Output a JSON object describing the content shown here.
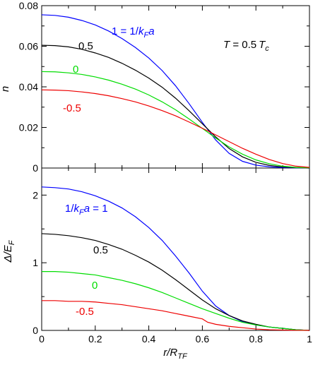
{
  "chart_data": [
    {
      "type": "line",
      "panel": "top",
      "ylabel": "n",
      "xlim": [
        0,
        1
      ],
      "ylim": [
        0,
        0.08
      ],
      "x_ticks": [
        "0",
        "0.2",
        "0.4",
        "0.6",
        "0.8",
        "1"
      ],
      "y_ticks": [
        0,
        0.02,
        0.04,
        0.06,
        0.08
      ],
      "y_tick_labels": [
        "0",
        "0.02",
        "0.04",
        "0.06",
        "0.08"
      ],
      "annotation": {
        "left": "T",
        "eq": " = 0.5",
        "t": "T",
        "sub": "c"
      },
      "series": [
        {
          "name": "1",
          "label_prefix": "1 = 1/",
          "label_k": "k",
          "label_sub": "F",
          "label_a": "a",
          "color": "#0000ff",
          "points": [
            [
              0,
              0.0755
            ],
            [
              0.05,
              0.0752
            ],
            [
              0.1,
              0.0743
            ],
            [
              0.15,
              0.0727
            ],
            [
              0.2,
              0.0705
            ],
            [
              0.25,
              0.0675
            ],
            [
              0.3,
              0.0638
            ],
            [
              0.35,
              0.0594
            ],
            [
              0.4,
              0.0542
            ],
            [
              0.45,
              0.048
            ],
            [
              0.5,
              0.0405
            ],
            [
              0.55,
              0.0318
            ],
            [
              0.6,
              0.0225
            ],
            [
              0.65,
              0.0138
            ],
            [
              0.7,
              0.0072
            ],
            [
              0.75,
              0.0033
            ],
            [
              0.8,
              0.0014
            ],
            [
              0.85,
              0.0006
            ],
            [
              0.9,
              0.0002
            ],
            [
              0.95,
              0.0001
            ],
            [
              1.0,
              0.0
            ]
          ]
        },
        {
          "name": "0.5",
          "color": "#000000",
          "points": [
            [
              0,
              0.0605
            ],
            [
              0.05,
              0.0603
            ],
            [
              0.1,
              0.0597
            ],
            [
              0.15,
              0.0585
            ],
            [
              0.2,
              0.0567
            ],
            [
              0.25,
              0.0545
            ],
            [
              0.3,
              0.0516
            ],
            [
              0.35,
              0.0482
            ],
            [
              0.4,
              0.0443
            ],
            [
              0.45,
              0.0398
            ],
            [
              0.5,
              0.0344
            ],
            [
              0.55,
              0.0283
            ],
            [
              0.6,
              0.0218
            ],
            [
              0.65,
              0.0153
            ],
            [
              0.7,
              0.0096
            ],
            [
              0.75,
              0.0055
            ],
            [
              0.8,
              0.0028
            ],
            [
              0.85,
              0.0013
            ],
            [
              0.9,
              0.0005
            ],
            [
              0.95,
              0.0002
            ],
            [
              1.0,
              0.0
            ]
          ]
        },
        {
          "name": "0",
          "color": "#00dd00",
          "points": [
            [
              0,
              0.0475
            ],
            [
              0.05,
              0.0474
            ],
            [
              0.1,
              0.0469
            ],
            [
              0.15,
              0.0461
            ],
            [
              0.2,
              0.0449
            ],
            [
              0.25,
              0.0433
            ],
            [
              0.3,
              0.0413
            ],
            [
              0.35,
              0.0389
            ],
            [
              0.4,
              0.036
            ],
            [
              0.45,
              0.0326
            ],
            [
              0.5,
              0.0287
            ],
            [
              0.55,
              0.0242
            ],
            [
              0.6,
              0.0195
            ],
            [
              0.65,
              0.0148
            ],
            [
              0.7,
              0.0104
            ],
            [
              0.75,
              0.0068
            ],
            [
              0.8,
              0.004
            ],
            [
              0.85,
              0.0021
            ],
            [
              0.9,
              0.0009
            ],
            [
              0.95,
              0.0003
            ],
            [
              1.0,
              0.0001
            ]
          ]
        },
        {
          "name": "-0.5",
          "color": "#ee0000",
          "points": [
            [
              0,
              0.0385
            ],
            [
              0.05,
              0.0384
            ],
            [
              0.1,
              0.0381
            ],
            [
              0.15,
              0.0375
            ],
            [
              0.2,
              0.0367
            ],
            [
              0.25,
              0.0356
            ],
            [
              0.3,
              0.0342
            ],
            [
              0.35,
              0.0326
            ],
            [
              0.4,
              0.0306
            ],
            [
              0.45,
              0.0283
            ],
            [
              0.5,
              0.0257
            ],
            [
              0.55,
              0.0227
            ],
            [
              0.6,
              0.0196
            ],
            [
              0.65,
              0.0163
            ],
            [
              0.7,
              0.013
            ],
            [
              0.75,
              0.0097
            ],
            [
              0.8,
              0.0068
            ],
            [
              0.85,
              0.0042
            ],
            [
              0.9,
              0.0022
            ],
            [
              0.95,
              0.0009
            ],
            [
              1.0,
              0.0003
            ]
          ]
        }
      ]
    },
    {
      "type": "line",
      "panel": "bottom",
      "ylabel_main": "Δ/E",
      "ylabel_sub": "F",
      "xlabel_main": "r/R",
      "xlabel_sub": "TF",
      "xlim": [
        0,
        1
      ],
      "ylim": [
        0,
        2.4
      ],
      "x_ticks": [
        0,
        0.2,
        0.4,
        0.6,
        0.8,
        1
      ],
      "x_tick_labels": [
        "0",
        "0.2",
        "0.4",
        "0.6",
        "0.8",
        "1"
      ],
      "y_ticks": [
        0,
        1,
        2
      ],
      "y_tick_labels": [
        "0",
        "1",
        "2"
      ],
      "series": [
        {
          "name": "1",
          "label_prefix": "1/",
          "label_k": "k",
          "label_sub": "F",
          "label_a": "a",
          "label_suffix": " = 1",
          "color": "#0000ff",
          "points": [
            [
              0,
              2.12
            ],
            [
              0.05,
              2.11
            ],
            [
              0.1,
              2.09
            ],
            [
              0.15,
              2.05
            ],
            [
              0.2,
              1.99
            ],
            [
              0.25,
              1.91
            ],
            [
              0.3,
              1.81
            ],
            [
              0.35,
              1.68
            ],
            [
              0.4,
              1.52
            ],
            [
              0.45,
              1.33
            ],
            [
              0.5,
              1.1
            ],
            [
              0.55,
              0.85
            ],
            [
              0.6,
              0.58
            ],
            [
              0.65,
              0.36
            ],
            [
              0.7,
              0.22
            ],
            [
              0.75,
              0.13
            ],
            [
              0.8,
              0.08
            ],
            [
              0.85,
              0.05
            ],
            [
              0.9,
              0.03
            ],
            [
              0.95,
              0.01
            ],
            [
              1.0,
              0.0
            ]
          ]
        },
        {
          "name": "0.5",
          "color": "#000000",
          "points": [
            [
              0,
              1.43
            ],
            [
              0.05,
              1.42
            ],
            [
              0.1,
              1.4
            ],
            [
              0.15,
              1.37
            ],
            [
              0.2,
              1.33
            ],
            [
              0.25,
              1.27
            ],
            [
              0.3,
              1.2
            ],
            [
              0.35,
              1.11
            ],
            [
              0.4,
              1.01
            ],
            [
              0.45,
              0.89
            ],
            [
              0.5,
              0.75
            ],
            [
              0.55,
              0.6
            ],
            [
              0.6,
              0.45
            ],
            [
              0.65,
              0.32
            ],
            [
              0.7,
              0.22
            ],
            [
              0.75,
              0.14
            ],
            [
              0.8,
              0.09
            ],
            [
              0.85,
              0.05
            ],
            [
              0.9,
              0.03
            ],
            [
              0.95,
              0.01
            ],
            [
              1.0,
              0.0
            ]
          ]
        },
        {
          "name": "0",
          "color": "#00dd00",
          "points": [
            [
              0,
              0.87
            ],
            [
              0.05,
              0.87
            ],
            [
              0.1,
              0.86
            ],
            [
              0.15,
              0.84
            ],
            [
              0.2,
              0.82
            ],
            [
              0.25,
              0.78
            ],
            [
              0.3,
              0.74
            ],
            [
              0.35,
              0.69
            ],
            [
              0.4,
              0.63
            ],
            [
              0.45,
              0.56
            ],
            [
              0.5,
              0.48
            ],
            [
              0.55,
              0.4
            ],
            [
              0.6,
              0.32
            ],
            [
              0.65,
              0.25
            ],
            [
              0.7,
              0.18
            ],
            [
              0.75,
              0.12
            ],
            [
              0.8,
              0.08
            ],
            [
              0.85,
              0.05
            ],
            [
              0.9,
              0.03
            ],
            [
              0.95,
              0.01
            ],
            [
              1.0,
              0.0
            ]
          ]
        },
        {
          "name": "-0.5",
          "color": "#ee0000",
          "points": [
            [
              0,
              0.44
            ],
            [
              0.05,
              0.44
            ],
            [
              0.1,
              0.43
            ],
            [
              0.15,
              0.43
            ],
            [
              0.2,
              0.42
            ],
            [
              0.25,
              0.4
            ],
            [
              0.3,
              0.38
            ],
            [
              0.35,
              0.35
            ],
            [
              0.4,
              0.32
            ],
            [
              0.45,
              0.29
            ],
            [
              0.5,
              0.25
            ],
            [
              0.55,
              0.21
            ],
            [
              0.6,
              0.17
            ],
            [
              0.62,
              0.12
            ],
            [
              0.65,
              0.09
            ],
            [
              0.7,
              0.06
            ],
            [
              0.75,
              0.04
            ],
            [
              0.8,
              0.02
            ],
            [
              0.85,
              0.01
            ],
            [
              0.9,
              0.005
            ],
            [
              0.95,
              0.002
            ],
            [
              1.0,
              0.0
            ]
          ]
        }
      ]
    }
  ]
}
